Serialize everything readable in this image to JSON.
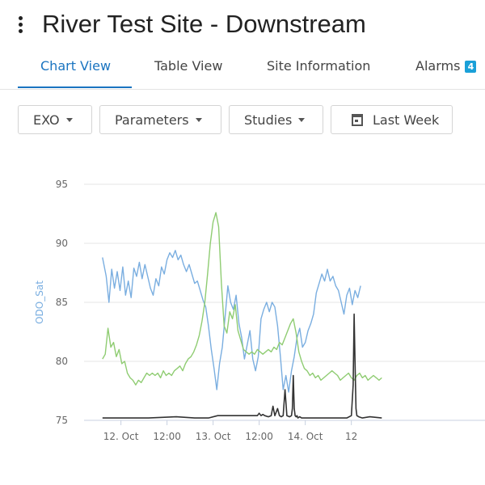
{
  "header": {
    "title": "River Test Site - Downstream",
    "menu_icon": "kebab-menu-icon"
  },
  "tabs": [
    {
      "label": "Chart View",
      "active": true
    },
    {
      "label": "Table View",
      "active": false
    },
    {
      "label": "Site Information",
      "active": false
    },
    {
      "label": "Alarms",
      "badge": "4",
      "active": false
    }
  ],
  "filters": {
    "exo": "EXO",
    "parameters": "Parameters",
    "studies": "Studies",
    "date_range": "Last Week",
    "date_icon": "calendar-icon"
  },
  "colors": {
    "accent": "#1a74c0",
    "badge": "#1aa0d8",
    "odo_line": "#7aaee0",
    "green_line": "#8fcc72",
    "black_line": "#333333",
    "grid": "#e6e6e6"
  },
  "chart_data": {
    "type": "line",
    "ylabel": "ODO_Sat",
    "ylim": [
      75,
      95
    ],
    "yticks": [
      75,
      80,
      85,
      90,
      95
    ],
    "xlim": [
      -0.4,
      3.95
    ],
    "xticks": [
      {
        "x": 0,
        "label": "12. Oct"
      },
      {
        "x": 0.5,
        "label": "12:00"
      },
      {
        "x": 1,
        "label": "13. Oct"
      },
      {
        "x": 1.5,
        "label": "12:00"
      },
      {
        "x": 2,
        "label": "14. Oct"
      },
      {
        "x": 2.5,
        "label": "12"
      }
    ],
    "grid": true,
    "series": [
      {
        "name": "ODO_Sat",
        "color": "#7aaee0",
        "x": [
          -0.2,
          -0.16,
          -0.13,
          -0.1,
          -0.07,
          -0.04,
          -0.01,
          0.02,
          0.05,
          0.08,
          0.11,
          0.14,
          0.17,
          0.2,
          0.23,
          0.26,
          0.29,
          0.32,
          0.35,
          0.38,
          0.41,
          0.44,
          0.47,
          0.5,
          0.53,
          0.56,
          0.59,
          0.62,
          0.65,
          0.68,
          0.71,
          0.74,
          0.77,
          0.8,
          0.83,
          0.86,
          0.89,
          0.92,
          0.95,
          0.98,
          1.01,
          1.04,
          1.07,
          1.1,
          1.13,
          1.16,
          1.19,
          1.22,
          1.25,
          1.28,
          1.31,
          1.34,
          1.37,
          1.4,
          1.43,
          1.46,
          1.49,
          1.52,
          1.55,
          1.58,
          1.61,
          1.64,
          1.67,
          1.7,
          1.73,
          1.76,
          1.79,
          1.82,
          1.85,
          1.88,
          1.91,
          1.94,
          1.97,
          2.0,
          2.03,
          2.06,
          2.09,
          2.12,
          2.15,
          2.18,
          2.21,
          2.24,
          2.27,
          2.3,
          2.33,
          2.36,
          2.39,
          2.42,
          2.45,
          2.48,
          2.51,
          2.54,
          2.57,
          2.6
        ],
        "y": [
          88.8,
          87.2,
          85.0,
          87.8,
          86.2,
          87.6,
          86.0,
          88.0,
          85.6,
          86.8,
          85.4,
          87.9,
          87.2,
          88.4,
          87.0,
          88.2,
          87.2,
          86.2,
          85.6,
          87.0,
          86.4,
          88.0,
          87.4,
          88.6,
          89.2,
          88.8,
          89.4,
          88.6,
          89.0,
          88.2,
          87.6,
          88.2,
          87.4,
          86.6,
          86.8,
          86.0,
          85.2,
          84.6,
          83.0,
          81.0,
          79.4,
          77.6,
          79.8,
          81.2,
          83.8,
          86.4,
          85.0,
          84.4,
          85.6,
          83.2,
          82.0,
          80.2,
          81.4,
          82.6,
          80.2,
          79.2,
          80.4,
          83.6,
          84.4,
          85.0,
          84.2,
          85.0,
          84.6,
          83.0,
          80.4,
          77.6,
          78.8,
          77.4,
          79.2,
          80.4,
          82.0,
          82.8,
          81.2,
          81.6,
          82.6,
          83.2,
          84.0,
          85.8,
          86.6,
          87.4,
          86.8,
          87.8,
          86.8,
          87.2,
          86.4,
          86.0,
          85.0,
          84.0,
          85.6,
          86.2,
          84.8,
          86.0,
          85.4,
          86.4
        ]
      },
      {
        "name": "",
        "color": "#8fcc72",
        "x": [
          -0.2,
          -0.17,
          -0.14,
          -0.11,
          -0.08,
          -0.05,
          -0.02,
          0.01,
          0.04,
          0.07,
          0.1,
          0.13,
          0.16,
          0.19,
          0.22,
          0.25,
          0.28,
          0.31,
          0.34,
          0.37,
          0.4,
          0.43,
          0.46,
          0.49,
          0.52,
          0.55,
          0.58,
          0.61,
          0.64,
          0.67,
          0.7,
          0.73,
          0.76,
          0.79,
          0.82,
          0.85,
          0.88,
          0.91,
          0.94,
          0.97,
          1.0,
          1.03,
          1.06,
          1.09,
          1.12,
          1.15,
          1.18,
          1.21,
          1.24,
          1.27,
          1.3,
          1.33,
          1.36,
          1.39,
          1.42,
          1.45,
          1.48,
          1.51,
          1.54,
          1.57,
          1.6,
          1.63,
          1.66,
          1.69,
          1.72,
          1.75,
          1.78,
          1.81,
          1.84,
          1.87,
          1.9,
          1.93,
          1.96,
          1.99,
          2.02,
          2.05,
          2.08,
          2.11,
          2.14,
          2.17,
          2.2,
          2.23,
          2.26,
          2.29,
          2.32,
          2.35,
          2.38,
          2.41,
          2.44,
          2.47,
          2.5,
          2.53,
          2.56,
          2.59,
          2.62,
          2.65,
          2.68,
          2.71,
          2.74,
          2.77,
          2.8,
          2.83
        ],
        "y": [
          80.2,
          80.6,
          82.8,
          81.2,
          81.6,
          80.4,
          81.0,
          79.8,
          80.0,
          79.0,
          78.6,
          78.4,
          78.0,
          78.4,
          78.2,
          78.6,
          79.0,
          78.8,
          79.0,
          78.8,
          79.0,
          78.6,
          79.2,
          78.8,
          79.0,
          78.8,
          79.2,
          79.4,
          79.6,
          79.2,
          79.8,
          80.2,
          80.4,
          80.8,
          81.4,
          82.2,
          83.4,
          85.0,
          87.4,
          90.0,
          91.8,
          92.6,
          91.4,
          86.6,
          83.0,
          82.4,
          84.2,
          83.6,
          84.8,
          82.6,
          81.8,
          81.0,
          80.8,
          80.6,
          80.8,
          80.6,
          81.0,
          80.8,
          80.6,
          80.8,
          81.0,
          80.8,
          81.2,
          81.0,
          81.6,
          81.4,
          82.0,
          82.6,
          83.2,
          83.6,
          82.4,
          80.8,
          80.0,
          79.4,
          79.2,
          78.8,
          79.0,
          78.6,
          78.8,
          78.4,
          78.6,
          78.8,
          79.0,
          79.2,
          79.0,
          78.8,
          78.4,
          78.6,
          78.8,
          79.0,
          78.6,
          78.4,
          78.8,
          79.0,
          78.6,
          78.8,
          78.4,
          78.6,
          78.8,
          78.6,
          78.4,
          78.6
        ]
      },
      {
        "name": "",
        "color": "#333333",
        "x": [
          -0.2,
          0.0,
          0.3,
          0.6,
          0.8,
          0.95,
          1.05,
          1.3,
          1.4,
          1.48,
          1.5,
          1.52,
          1.54,
          1.56,
          1.6,
          1.63,
          1.65,
          1.67,
          1.7,
          1.72,
          1.74,
          1.76,
          1.78,
          1.8,
          1.83,
          1.85,
          1.86,
          1.87,
          1.88,
          1.89,
          1.9,
          1.91,
          1.92,
          1.94,
          1.96,
          2.0,
          2.2,
          2.45,
          2.5,
          2.52,
          2.53,
          2.54,
          2.55,
          2.56,
          2.58,
          2.62,
          2.7,
          2.83
        ],
        "y": [
          75.2,
          75.2,
          75.2,
          75.3,
          75.2,
          75.2,
          75.4,
          75.4,
          75.4,
          75.4,
          75.6,
          75.4,
          75.5,
          75.4,
          75.3,
          75.4,
          76.2,
          75.4,
          76.0,
          75.4,
          75.3,
          75.4,
          77.6,
          75.4,
          75.3,
          75.4,
          76.0,
          78.8,
          76.0,
          75.4,
          75.3,
          75.4,
          75.2,
          75.3,
          75.2,
          75.2,
          75.2,
          75.2,
          75.4,
          78.0,
          84.0,
          80.0,
          76.0,
          75.4,
          75.3,
          75.2,
          75.3,
          75.2
        ]
      }
    ]
  }
}
